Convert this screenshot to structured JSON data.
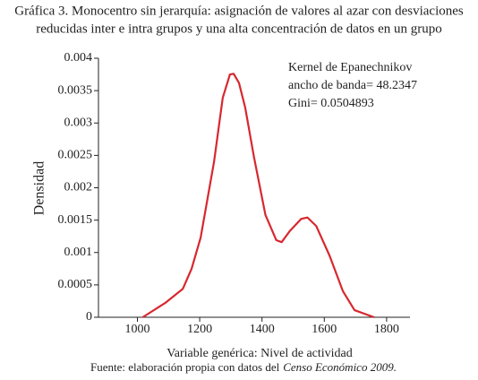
{
  "chart_data": {
    "type": "line",
    "title": [
      "Gráfica 3. Monocentro sin jerarquía: asignación de valores al azar con desviaciones",
      "reducidas inter e intra grupos y una alta concentración de datos en un grupo"
    ],
    "xlabel": "Variable genérica: Nivel de actividad",
    "ylabel": "Densidad",
    "annotations": [
      "Kernel de Epanechnikov",
      "ancho de banda= 48.2347",
      "Gini= 0.0504893"
    ],
    "source": [
      "Fuente: elaboración propia con datos del",
      "Censo Económico 2009."
    ],
    "x": [
      1017,
      1089,
      1146,
      1174,
      1203,
      1246,
      1274,
      1297,
      1309,
      1326,
      1346,
      1374,
      1411,
      1446,
      1463,
      1489,
      1526,
      1546,
      1574,
      1617,
      1660,
      1697,
      1760
    ],
    "series": [
      {
        "color": "#d7282f",
        "values": [
          0,
          0.00022,
          0.00044,
          0.00075,
          0.00123,
          0.0024,
          0.00339,
          0.00375,
          0.00376,
          0.00362,
          0.00324,
          0.00248,
          0.00158,
          0.00119,
          0.00116,
          0.00133,
          0.00152,
          0.00154,
          0.00141,
          0.00095,
          0.0004,
          0.00011,
          0
        ]
      }
    ],
    "xlim": [
      875,
      1875
    ],
    "xticks": [
      1000,
      1200,
      1400,
      1600,
      1800
    ],
    "ylim": [
      0,
      0.004
    ],
    "yticks": [
      0,
      0.0005,
      0.001,
      0.0015,
      0.002,
      0.0025,
      0.003,
      0.0035,
      0.004
    ]
  }
}
